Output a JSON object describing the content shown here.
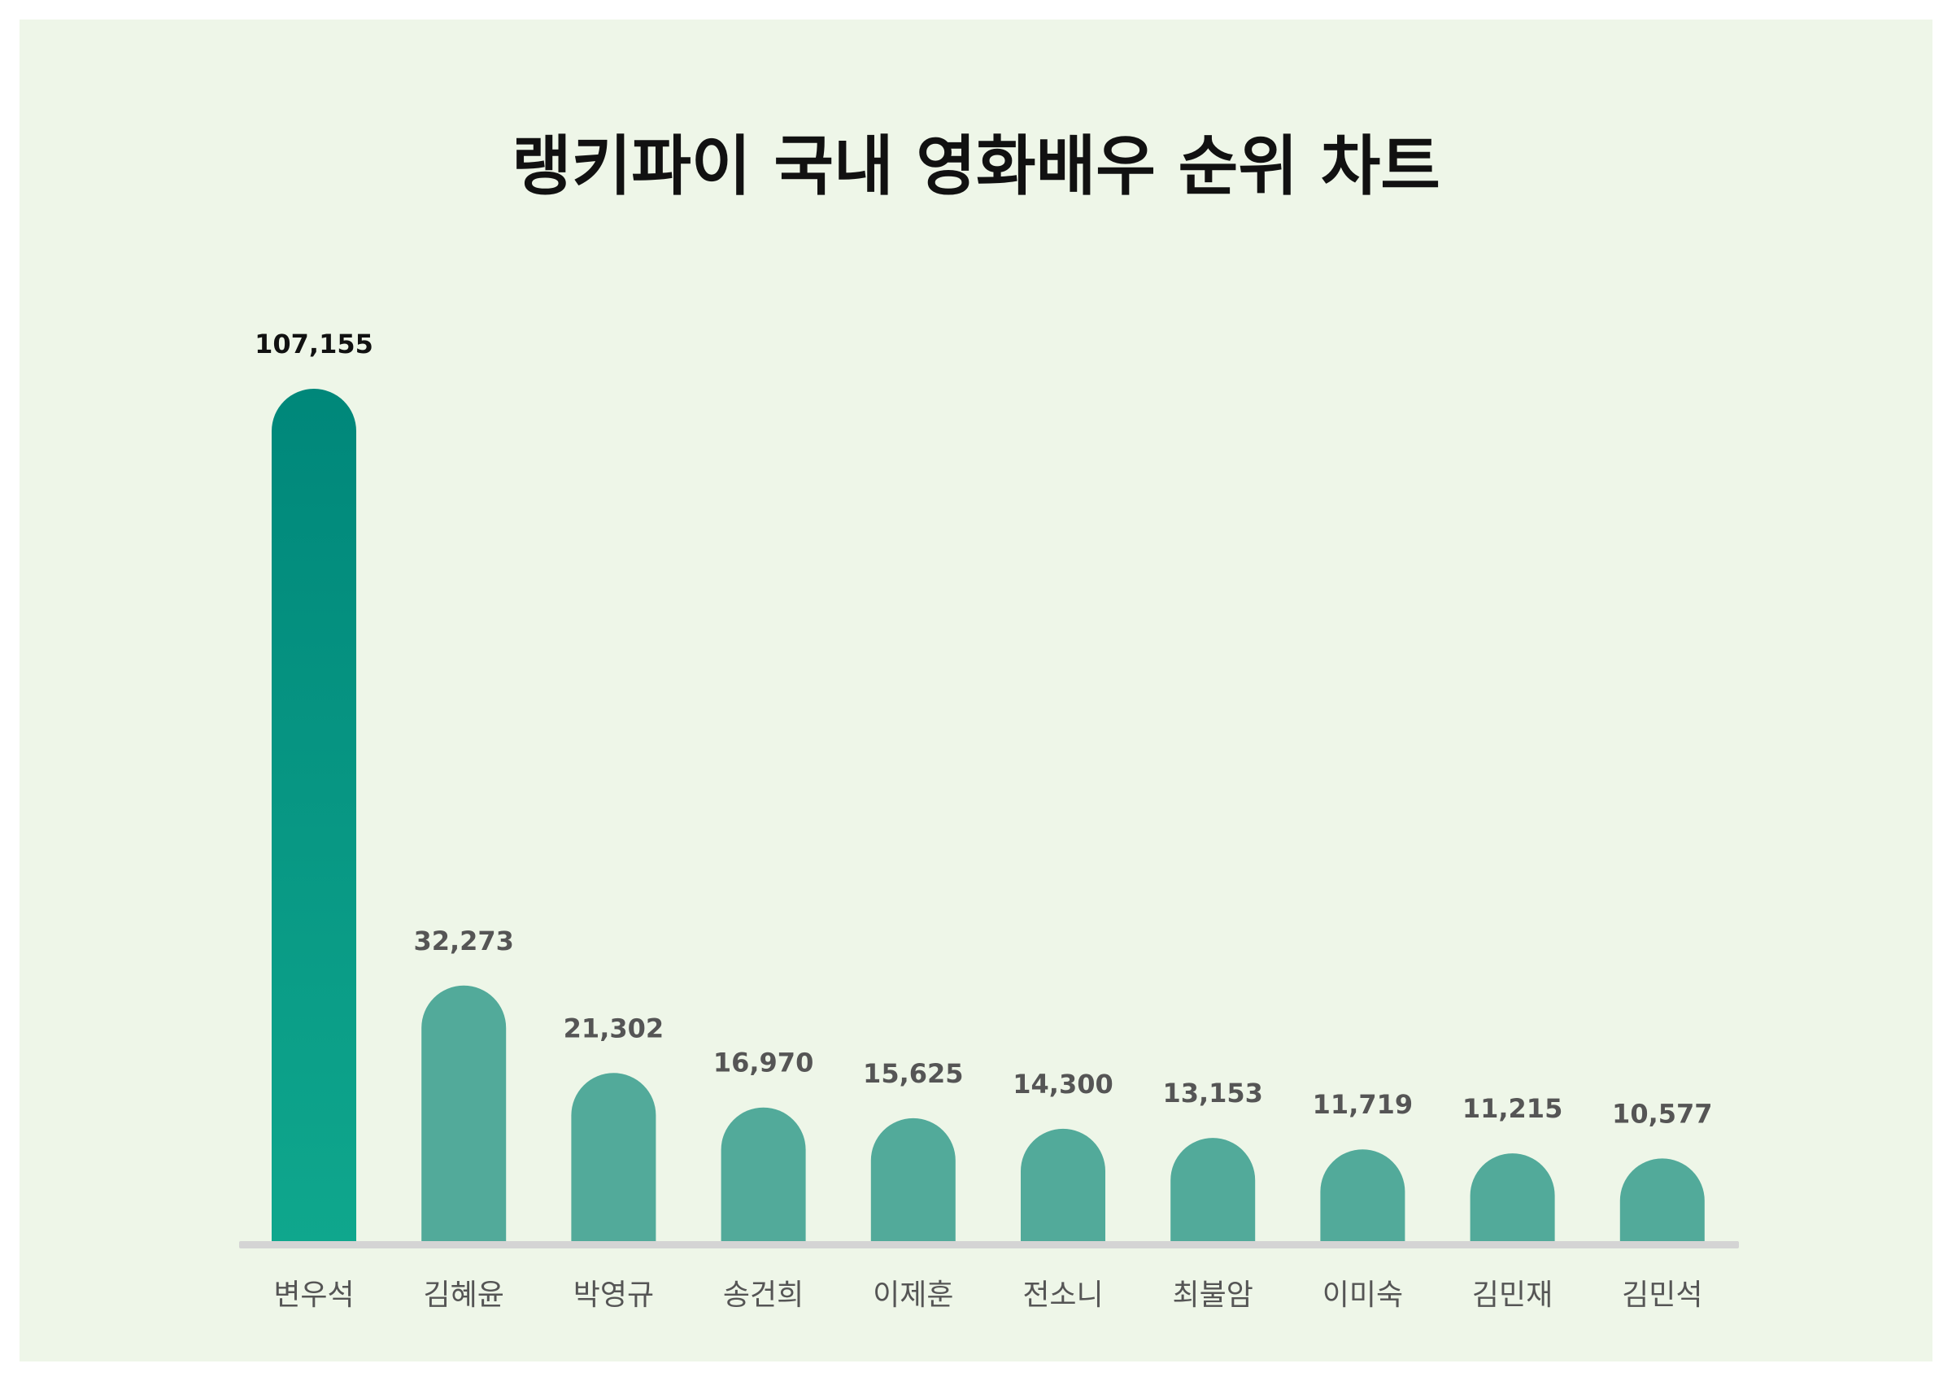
{
  "chart_data": {
    "type": "bar",
    "title": "랭키파이 국내 영화배우 순위 차트",
    "xlabel": "",
    "ylabel": "",
    "categories": [
      "변우석",
      "김혜윤",
      "박영규",
      "송건희",
      "이제훈",
      "전소니",
      "최불암",
      "이미숙",
      "김민재",
      "김민석"
    ],
    "values": [
      107155,
      32273,
      21302,
      16970,
      15625,
      14300,
      13153,
      11719,
      11215,
      10577
    ],
    "value_labels": [
      "107,155",
      "32,273",
      "21,302",
      "16,970",
      "15,625",
      "14,300",
      "13,153",
      "11,719",
      "11,215",
      "10,577"
    ],
    "ylim": [
      0,
      107155
    ],
    "grid": false,
    "legend": "none",
    "colors": {
      "top_bar_dark": "#00877a",
      "top_bar_light": "#0fa78d",
      "other_bars": "#52aa9a",
      "baseline": "#d4d4d4",
      "top_value_label": "#111111",
      "other_value_label": "#555555",
      "background": "#eef6e8"
    }
  }
}
